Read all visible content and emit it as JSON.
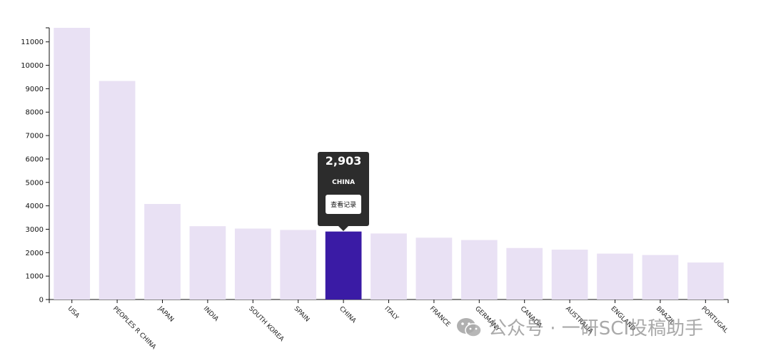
{
  "chart_data": {
    "type": "bar",
    "categories": [
      "USA",
      "PEOPLES R CHINA",
      "JAPAN",
      "INDIA",
      "SOUTH KOREA",
      "SPAIN",
      "CHINA",
      "ITALY",
      "FRANCE",
      "GERMANY",
      "CANADA",
      "AUSTRALIA",
      "ENGLAND",
      "BRAZIL",
      "PORTUGAL"
    ],
    "values": [
      11600,
      9330,
      4080,
      3130,
      3030,
      2970,
      2903,
      2820,
      2640,
      2540,
      2200,
      2130,
      1960,
      1900,
      1580
    ],
    "ylim": [
      0,
      11600
    ],
    "yticks": [
      0,
      1000,
      2000,
      3000,
      4000,
      5000,
      6000,
      7000,
      8000,
      9000,
      10000,
      11000
    ],
    "highlight_index": 6,
    "colors": {
      "bar": "#e9e1f4",
      "highlight": "#3a1ba5",
      "axis": "#111111"
    },
    "grid": false
  },
  "tooltip": {
    "value": "2,903",
    "label": "CHINA",
    "button_label": "查看记录"
  },
  "watermark": {
    "text": "公众号 · 一研SCI投稿助手",
    "icon": "wechat-icon"
  }
}
